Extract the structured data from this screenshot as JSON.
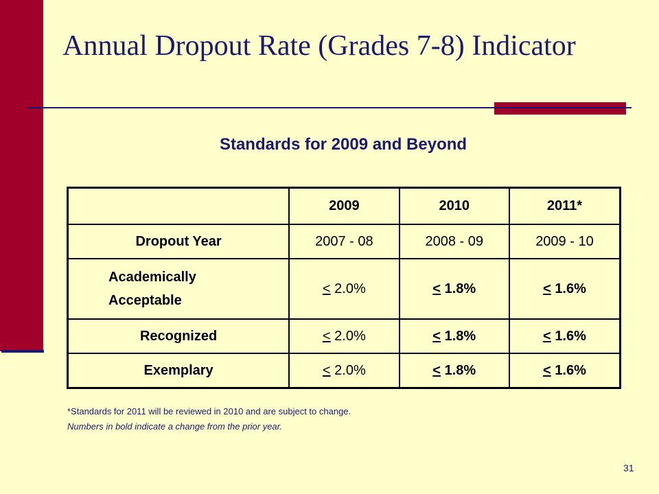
{
  "slide": {
    "title": "Annual Dropout Rate (Grades 7-8) Indicator",
    "subtitle": "Standards for 2009 and Beyond",
    "page_number": "31",
    "colors": {
      "background": "#ffffcc",
      "accent_red": "#a0002a",
      "navy": "#1a1a6e"
    }
  },
  "table": {
    "headers": [
      "",
      "2009",
      "2010",
      "2011*"
    ],
    "rows": [
      {
        "label": "Dropout Year",
        "cells": [
          {
            "symbol": "",
            "value": "2007 - 08"
          },
          {
            "symbol": "",
            "value": "2008 - 09"
          },
          {
            "symbol": "",
            "value": "2009 - 10"
          }
        ]
      },
      {
        "label_line1": "Academically",
        "label_line2": "Acceptable",
        "cells": [
          {
            "symbol": "<",
            "value": " 2.0%"
          },
          {
            "symbol": "<",
            "value": " 1.8%"
          },
          {
            "symbol": "<",
            "value": " 1.6%"
          }
        ]
      },
      {
        "label": "Recognized",
        "cells": [
          {
            "symbol": "<",
            "value": " 2.0%"
          },
          {
            "symbol": "<",
            "value": " 1.8%"
          },
          {
            "symbol": "<",
            "value": " 1.6%"
          }
        ]
      },
      {
        "label": "Exemplary",
        "cells": [
          {
            "symbol": "<",
            "value": " 2.0%"
          },
          {
            "symbol": "<",
            "value": " 1.8%"
          },
          {
            "symbol": "<",
            "value": " 1.6%"
          }
        ]
      }
    ]
  },
  "notes": [
    "*Standards for 2011 will be reviewed in 2010 and are subject to change.",
    "Numbers in bold indicate a change from the prior year."
  ]
}
